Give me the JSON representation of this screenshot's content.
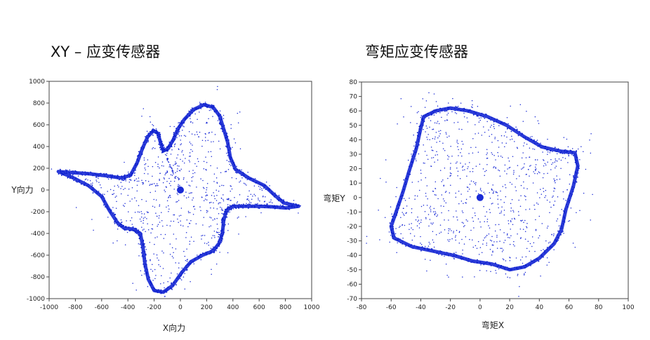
{
  "chart_data": [
    {
      "type": "scatter",
      "title": "XY – 应变传感器",
      "xlabel": "X向力",
      "ylabel": "Y向力",
      "xlim": [
        -1000,
        1000
      ],
      "ylim": [
        -1000,
        1000
      ],
      "xticks": [
        -1000,
        -800,
        -600,
        -400,
        -200,
        0,
        200,
        400,
        600,
        800,
        1000
      ],
      "yticks": [
        1000,
        800,
        600,
        400,
        200,
        0,
        -200,
        -400,
        -600,
        -800,
        -1000
      ],
      "point_color": "#1a2bd6",
      "grid": false,
      "outline": [
        [
          -930,
          170
        ],
        [
          -820,
          160
        ],
        [
          -700,
          150
        ],
        [
          -560,
          130
        ],
        [
          -450,
          110
        ],
        [
          -380,
          135
        ],
        [
          -330,
          250
        ],
        [
          -290,
          380
        ],
        [
          -250,
          490
        ],
        [
          -205,
          545
        ],
        [
          -170,
          520
        ],
        [
          -150,
          430
        ],
        [
          -130,
          360
        ],
        [
          -95,
          380
        ],
        [
          -55,
          460
        ],
        [
          -20,
          560
        ],
        [
          30,
          650
        ],
        [
          100,
          740
        ],
        [
          180,
          785
        ],
        [
          250,
          760
        ],
        [
          300,
          680
        ],
        [
          330,
          560
        ],
        [
          360,
          440
        ],
        [
          380,
          300
        ],
        [
          420,
          190
        ],
        [
          520,
          110
        ],
        [
          640,
          40
        ],
        [
          720,
          -50
        ],
        [
          790,
          -120
        ],
        [
          900,
          -150
        ],
        [
          800,
          -165
        ],
        [
          700,
          -155
        ],
        [
          600,
          -150
        ],
        [
          490,
          -150
        ],
        [
          400,
          -150
        ],
        [
          350,
          -190
        ],
        [
          330,
          -280
        ],
        [
          320,
          -400
        ],
        [
          295,
          -490
        ],
        [
          250,
          -560
        ],
        [
          170,
          -600
        ],
        [
          80,
          -660
        ],
        [
          10,
          -760
        ],
        [
          -60,
          -880
        ],
        [
          -130,
          -940
        ],
        [
          -200,
          -925
        ],
        [
          -245,
          -820
        ],
        [
          -270,
          -680
        ],
        [
          -285,
          -530
        ],
        [
          -305,
          -400
        ],
        [
          -360,
          -360
        ],
        [
          -430,
          -350
        ],
        [
          -480,
          -300
        ],
        [
          -540,
          -190
        ],
        [
          -600,
          -60
        ],
        [
          -700,
          40
        ],
        [
          -830,
          120
        ]
      ],
      "center": [
        0,
        0
      ]
    },
    {
      "type": "scatter",
      "title": "弯矩应变传感器",
      "xlabel": "弯矩X",
      "ylabel": "弯矩Y",
      "xlim": [
        -80,
        100
      ],
      "ylim": [
        -70,
        80
      ],
      "xticks": [
        -80,
        -60,
        -40,
        -20,
        0,
        20,
        40,
        60,
        80,
        100
      ],
      "yticks": [
        80,
        70,
        60,
        50,
        40,
        30,
        20,
        10,
        0,
        -10,
        -20,
        -30,
        -40,
        -50,
        -60,
        -70
      ],
      "point_color": "#1a2bd6",
      "grid": false,
      "outline": [
        [
          -38,
          56
        ],
        [
          -30,
          60
        ],
        [
          -20,
          62
        ],
        [
          -8,
          60
        ],
        [
          5,
          56
        ],
        [
          18,
          50
        ],
        [
          30,
          42
        ],
        [
          42,
          35
        ],
        [
          55,
          32
        ],
        [
          64,
          31
        ],
        [
          66,
          22
        ],
        [
          63,
          8
        ],
        [
          58,
          -8
        ],
        [
          55,
          -22
        ],
        [
          50,
          -32
        ],
        [
          40,
          -42
        ],
        [
          30,
          -48
        ],
        [
          20,
          -50
        ],
        [
          8,
          -46
        ],
        [
          -5,
          -44
        ],
        [
          -18,
          -40
        ],
        [
          -32,
          -37
        ],
        [
          -46,
          -34
        ],
        [
          -58,
          -28
        ],
        [
          -60,
          -20
        ],
        [
          -56,
          -8
        ],
        [
          -52,
          4
        ],
        [
          -48,
          18
        ],
        [
          -43,
          34
        ],
        [
          -40,
          48
        ]
      ],
      "center": [
        0,
        0
      ]
    }
  ]
}
